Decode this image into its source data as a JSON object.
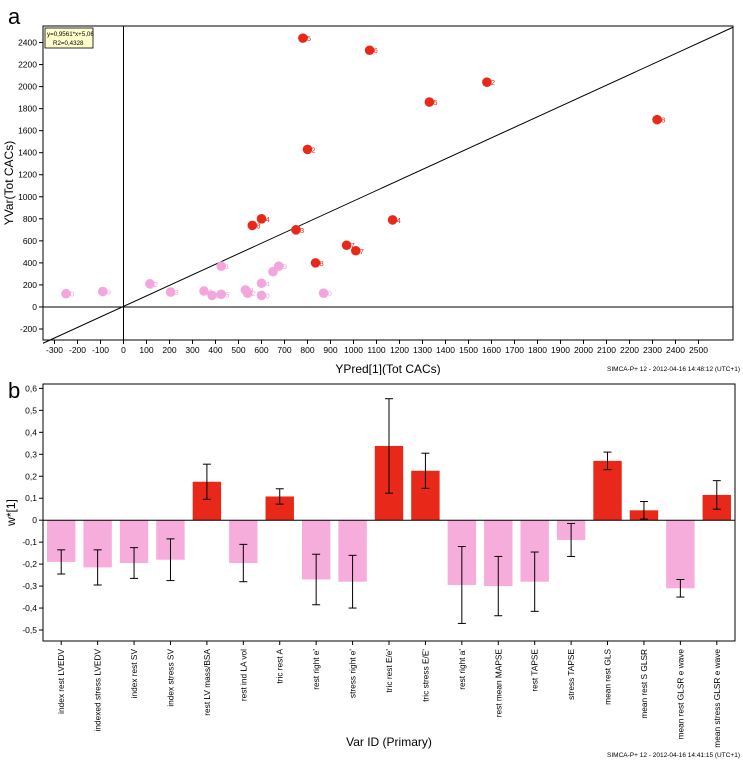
{
  "panel_a_letter": "a",
  "panel_b_letter": "b",
  "chart_data": [
    {
      "type": "scatter",
      "panel": "a",
      "xlabel": "YPred[1](Tot CACs)",
      "ylabel": "YVar(Tot CACs)",
      "xlim": [
        -350,
        2650
      ],
      "ylim": [
        -300,
        2550
      ],
      "xticks": [
        -300,
        -200,
        -100,
        0,
        100,
        200,
        300,
        400,
        500,
        600,
        700,
        800,
        900,
        1000,
        1100,
        1200,
        1300,
        1400,
        1500,
        1600,
        1700,
        1800,
        1900,
        2000,
        2100,
        2200,
        2300,
        2400,
        2500
      ],
      "yticks": [
        -200,
        0,
        200,
        400,
        600,
        800,
        1000,
        1200,
        1400,
        1600,
        1800,
        2000,
        2200,
        2400
      ],
      "equation_box": [
        "y=0,9561*x+5,06",
        "R2=0,4328"
      ],
      "regression": {
        "slope": 0.9561,
        "intercept": 5.06
      },
      "footer": "SIMCA-P+ 12 - 2012-04-16 14:48:12 (UTC+1)",
      "colors": {
        "high": "#e8291a",
        "low": "#f3a6dc"
      },
      "points": [
        {
          "x": 780,
          "y": 2440,
          "label": "5",
          "group": "high"
        },
        {
          "x": 1070,
          "y": 2330,
          "label": "6",
          "group": "high"
        },
        {
          "x": 1580,
          "y": 2040,
          "label": "2",
          "group": "high"
        },
        {
          "x": 1330,
          "y": 1860,
          "label": "5",
          "group": "high"
        },
        {
          "x": 2320,
          "y": 1700,
          "label": "8",
          "group": "high"
        },
        {
          "x": 800,
          "y": 1430,
          "label": "2",
          "group": "high"
        },
        {
          "x": 600,
          "y": 800,
          "label": "4",
          "group": "high"
        },
        {
          "x": 1170,
          "y": 790,
          "label": "4",
          "group": "high"
        },
        {
          "x": 560,
          "y": 740,
          "label": "8",
          "group": "high"
        },
        {
          "x": 750,
          "y": 700,
          "label": "3",
          "group": "high"
        },
        {
          "x": 970,
          "y": 560,
          "label": "7",
          "group": "high"
        },
        {
          "x": 1010,
          "y": 510,
          "label": "7",
          "group": "high"
        },
        {
          "x": 835,
          "y": 400,
          "label": "8",
          "group": "high"
        },
        {
          "x": -250,
          "y": 120,
          "label": "0",
          "group": "low"
        },
        {
          "x": -90,
          "y": 140,
          "label": "9",
          "group": "low"
        },
        {
          "x": 115,
          "y": 210,
          "label": "2",
          "group": "low"
        },
        {
          "x": 205,
          "y": 135,
          "label": "3",
          "group": "low"
        },
        {
          "x": 350,
          "y": 145,
          "label": "4",
          "group": "low"
        },
        {
          "x": 385,
          "y": 105,
          "label": "4",
          "group": "low"
        },
        {
          "x": 425,
          "y": 115,
          "label": "5",
          "group": "low"
        },
        {
          "x": 425,
          "y": 370,
          "label": "1",
          "group": "low"
        },
        {
          "x": 530,
          "y": 155,
          "label": "3",
          "group": "low"
        },
        {
          "x": 540,
          "y": 125,
          "label": "2",
          "group": "low"
        },
        {
          "x": 600,
          "y": 215,
          "label": "4",
          "group": "low"
        },
        {
          "x": 600,
          "y": 105,
          "label": "0",
          "group": "low"
        },
        {
          "x": 650,
          "y": 320,
          "label": "",
          "group": "low"
        },
        {
          "x": 675,
          "y": 370,
          "label": "9",
          "group": "low"
        },
        {
          "x": 870,
          "y": 125,
          "label": "0",
          "group": "low"
        }
      ]
    },
    {
      "type": "bar",
      "panel": "b",
      "xlabel": "Var ID (Primary)",
      "ylabel": "w*[1]",
      "ylim": [
        -0.55,
        0.62
      ],
      "yticks": [
        "0,6",
        "0,5",
        "0,4",
        "0,3",
        "0,2",
        "0,1",
        "0",
        "-0,1",
        "-0,2",
        "-0,3",
        "-0,4",
        "-0,5"
      ],
      "ytick_values": [
        0.6,
        0.5,
        0.4,
        0.3,
        0.2,
        0.1,
        0,
        -0.1,
        -0.2,
        -0.3,
        -0.4,
        -0.5
      ],
      "footer": "SIMCA-P+ 12 - 2012-04-16 14:41:15 (UTC+1)",
      "colors": {
        "positive": "#e8291a",
        "negative": "#f7addb"
      },
      "categories": [
        "index rest LVEDV",
        "indexed stress LVEDV",
        "index rest SV",
        "index stress SV",
        "rest LV mass/BSA",
        "rest ind LA vol",
        "tric rest A",
        "rest right e'",
        "stress right e'",
        "tric rest E/e'",
        "tric stress E/E'",
        "rest right a'",
        "rest mean MAPSE",
        "rest TAPSE",
        "stress TAPSE",
        "mean rest GLS",
        "mean rest S GLSR",
        "mean rest GLSR e wave",
        "mean stress GLSR e wave"
      ],
      "values": [
        -0.19,
        -0.215,
        -0.195,
        -0.18,
        0.175,
        -0.195,
        0.108,
        -0.27,
        -0.28,
        0.338,
        0.225,
        -0.295,
        -0.3,
        -0.28,
        -0.09,
        0.27,
        0.045,
        -0.31,
        0.115
      ],
      "errors": [
        0.055,
        0.08,
        0.07,
        0.095,
        0.08,
        0.085,
        0.035,
        0.115,
        0.12,
        0.215,
        0.08,
        0.175,
        0.135,
        0.135,
        0.075,
        0.04,
        0.04,
        0.04,
        0.065
      ]
    }
  ]
}
